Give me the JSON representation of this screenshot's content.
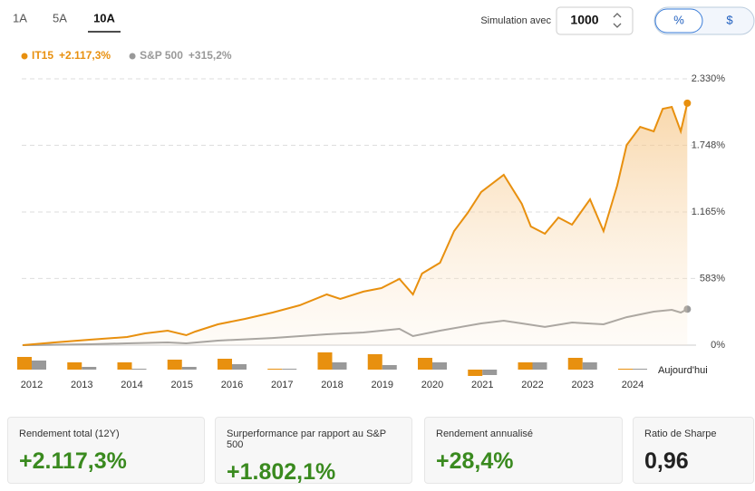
{
  "tabs": [
    "1A",
    "5A",
    "10A"
  ],
  "active_tab": 2,
  "simulation": {
    "label": "Simulation avec",
    "amount": 1000
  },
  "units": [
    "%",
    "$"
  ],
  "active_unit": 0,
  "chart_data": [
    {
      "type": "line",
      "xlim": [
        2011.8,
        2025.1
      ],
      "ylim": [
        0,
        2330
      ],
      "yticks": [
        {
          "value": 0,
          "label": "0%"
        },
        {
          "value": 583,
          "label": "583%"
        },
        {
          "value": 1165,
          "label": "1.165%"
        },
        {
          "value": 1748,
          "label": "1.748%"
        },
        {
          "value": 2330,
          "label": "2.330%"
        }
      ],
      "grid": true,
      "series": [
        {
          "name": "IT15",
          "color": "#e8900f",
          "total_label": "+2.117,3%",
          "x": [
            2011.82,
            2012.45,
            2013.18,
            2013.9,
            2014.26,
            2014.71,
            2015.08,
            2015.26,
            2015.71,
            2016.25,
            2016.8,
            2017.34,
            2017.88,
            2018.15,
            2018.61,
            2018.97,
            2019.33,
            2019.6,
            2019.78,
            2020.14,
            2020.42,
            2020.69,
            2020.96,
            2021.41,
            2021.77,
            2021.95,
            2022.23,
            2022.5,
            2022.77,
            2023.13,
            2023.4,
            2023.67,
            2023.86,
            2024.13,
            2024.4,
            2024.58,
            2024.76,
            2024.94,
            2025.07
          ],
          "values": [
            0,
            24,
            48,
            71,
            103,
            127,
            87,
            119,
            182,
            230,
            285,
            349,
            444,
            404,
            468,
            499,
            579,
            444,
            626,
            721,
            998,
            1157,
            1339,
            1490,
            1236,
            1038,
            975,
            1117,
            1054,
            1276,
            998,
            1395,
            1751,
            1910,
            1870,
            2068,
            2084,
            1870,
            2117
          ]
        },
        {
          "name": "S&P 500",
          "color": "#999999",
          "total_label": "+315,2%",
          "x": [
            2011.82,
            2013.18,
            2013.9,
            2014.71,
            2015.08,
            2015.71,
            2016.8,
            2017.88,
            2018.61,
            2019.33,
            2019.6,
            2020.14,
            2020.96,
            2021.41,
            2021.77,
            2022.23,
            2022.77,
            2023.4,
            2023.86,
            2024.4,
            2024.76,
            2024.94,
            2025.07
          ],
          "values": [
            0,
            8,
            16,
            24,
            16,
            40,
            63,
            95,
            111,
            143,
            79,
            127,
            190,
            214,
            190,
            159,
            198,
            182,
            245,
            293,
            309,
            285,
            315
          ]
        }
      ]
    },
    {
      "type": "bar",
      "categories": [
        "2012",
        "2013",
        "2014",
        "2015",
        "2016",
        "2017",
        "2018",
        "2019",
        "2020",
        "2021",
        "2022",
        "2023",
        "2024"
      ],
      "ylim": [
        -10,
        20
      ],
      "annotation": "Aujourd'hui",
      "series": [
        {
          "name": "IT15",
          "color": "#e8900f",
          "values": [
            14,
            8,
            8,
            11,
            12,
            1,
            19,
            17,
            13,
            -7,
            8,
            13,
            1
          ]
        },
        {
          "name": "S&P 500",
          "color": "#999999",
          "values": [
            10,
            3,
            1,
            3,
            6,
            1,
            8,
            5,
            8,
            -6,
            8,
            8,
            1
          ]
        }
      ]
    }
  ],
  "stats": [
    {
      "label": "Rendement total (12Y)",
      "value": "+2.117,3%"
    },
    {
      "label": "Surperformance par rapport au S&P 500",
      "value": "+1.802,1%"
    },
    {
      "label": "Rendement annualisé",
      "value": "+28,4%"
    },
    {
      "label": "Ratio de Sharpe",
      "value": "0,96"
    }
  ]
}
